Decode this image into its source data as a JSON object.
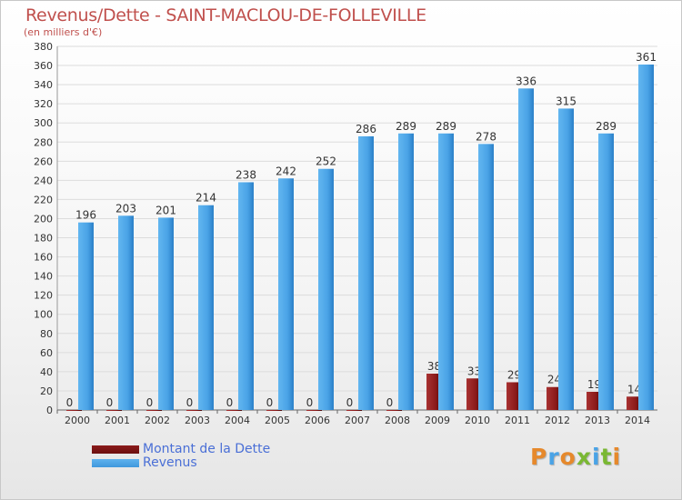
{
  "title": "Revenus/Dette - SAINT-MACLOU-DE-FOLLEVILLE",
  "subtitle": "(en milliers d'€)",
  "logo": "Proxiti",
  "colors": {
    "revenus": "#4aa3e6",
    "revenus_dark": "#2a7fc8",
    "dette": "#8b1a1a",
    "dette_dark": "#4a0808",
    "title": "#c0504d",
    "legend_text": "#4a6fd6",
    "grid": "#dcdcdc"
  },
  "legend": [
    {
      "label": "Montant de la Dette",
      "color": "#6b0f0f"
    },
    {
      "label": "Revenus",
      "color": "#3f97dc"
    }
  ],
  "chart_data": {
    "type": "bar",
    "title": "Revenus/Dette - SAINT-MACLOU-DE-FOLLEVILLE",
    "ylabel": "(en milliers d'€)",
    "categories": [
      "2000",
      "2001",
      "2002",
      "2003",
      "2004",
      "2005",
      "2006",
      "2007",
      "2008",
      "2009",
      "2010",
      "2011",
      "2012",
      "2013",
      "2014"
    ],
    "series": [
      {
        "name": "Montant de la Dette",
        "values": [
          0,
          0,
          0,
          0,
          0,
          0,
          0,
          0,
          0,
          38,
          33,
          29,
          24,
          19,
          14
        ]
      },
      {
        "name": "Revenus",
        "values": [
          196,
          203,
          201,
          214,
          238,
          242,
          252,
          286,
          289,
          289,
          278,
          336,
          315,
          289,
          361
        ]
      }
    ],
    "ylim": [
      0,
      380
    ],
    "yticks": [
      0,
      20,
      40,
      60,
      80,
      100,
      120,
      140,
      160,
      180,
      200,
      220,
      240,
      260,
      280,
      300,
      320,
      340,
      360,
      380
    ],
    "grid": true,
    "legend_position": "bottom-left"
  }
}
